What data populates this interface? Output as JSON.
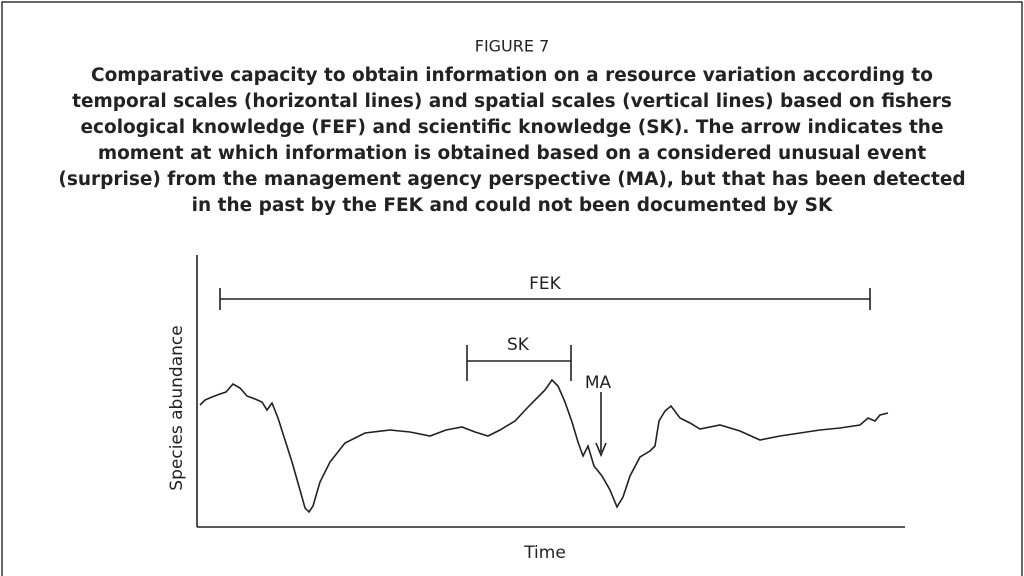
{
  "figure": {
    "label": "FIGURE 7",
    "caption_lines": [
      "Comparative capacity to obtain information on a resource variation according to",
      "temporal scales (horizontal lines) and spatial scales (vertical lines) based on fishers",
      "ecological knowledge (FEF) and scientific knowledge (SK). The arrow indicates the",
      "moment at which information is obtained based on a considered unusual event",
      "(surprise) from the management agency perspective (MA), but that has been detected",
      "in the past by the FEK and could not been documented by SK"
    ],
    "diagram": {
      "y_label": "Species abundance",
      "x_label": "Time",
      "fek_label": "FEK",
      "sk_label": "SK",
      "ma_label": "MA"
    }
  }
}
